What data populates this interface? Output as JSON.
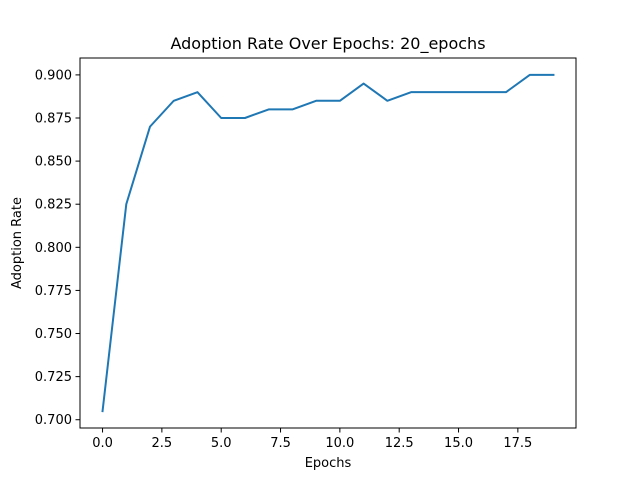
{
  "chart_data": {
    "type": "line",
    "title": "Adoption Rate Over Epochs: 20_epochs",
    "xlabel": "Epochs",
    "ylabel": "Adoption Rate",
    "xlim": [
      -0.95,
      19.95
    ],
    "ylim": [
      0.6952,
      0.9098
    ],
    "xticks": [
      0.0,
      2.5,
      5.0,
      7.5,
      10.0,
      12.5,
      15.0,
      17.5
    ],
    "xtick_labels": [
      "0.0",
      "2.5",
      "5.0",
      "7.5",
      "10.0",
      "12.5",
      "15.0",
      "17.5"
    ],
    "yticks": [
      0.7,
      0.725,
      0.75,
      0.775,
      0.8,
      0.825,
      0.85,
      0.875,
      0.9
    ],
    "ytick_labels": [
      "0.700",
      "0.725",
      "0.750",
      "0.775",
      "0.800",
      "0.825",
      "0.850",
      "0.875",
      "0.900"
    ],
    "grid": false,
    "series": [
      {
        "color": "#1f77b4",
        "x": [
          0,
          1,
          2,
          3,
          4,
          5,
          6,
          7,
          8,
          9,
          10,
          11,
          12,
          13,
          14,
          15,
          16,
          17,
          18,
          19
        ],
        "y": [
          0.705,
          0.825,
          0.87,
          0.885,
          0.89,
          0.875,
          0.875,
          0.88,
          0.88,
          0.885,
          0.885,
          0.895,
          0.885,
          0.89,
          0.89,
          0.89,
          0.89,
          0.89,
          0.9,
          0.9
        ]
      }
    ]
  }
}
